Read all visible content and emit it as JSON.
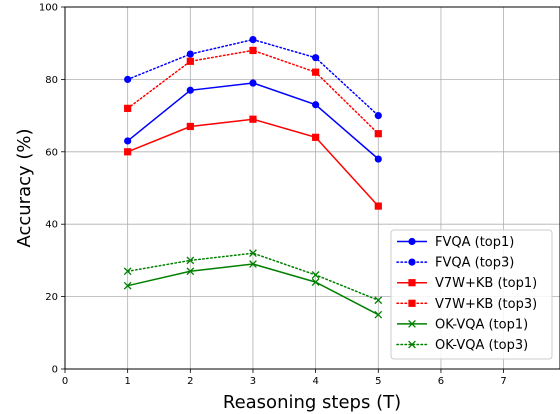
{
  "chart_data": {
    "type": "line",
    "title": "",
    "xlabel": "Reasoning steps (T)",
    "ylabel": "Accuracy (%)",
    "xlim": [
      0,
      7.9
    ],
    "ylim": [
      0,
      100
    ],
    "xticks": [
      0,
      1,
      2,
      3,
      4,
      5,
      6,
      7
    ],
    "yticks": [
      0,
      20,
      40,
      60,
      80,
      100
    ],
    "grid": true,
    "legend_position": "lower-right",
    "x": [
      1,
      2,
      3,
      4,
      5
    ],
    "series": [
      {
        "name": "FVQA (top1)",
        "values": [
          63,
          77,
          79,
          73,
          58
        ],
        "color": "#0000ff",
        "marker": "circle",
        "linestyle": "solid"
      },
      {
        "name": "FVQA (top3)",
        "values": [
          80,
          87,
          91,
          86,
          70
        ],
        "color": "#0000ff",
        "marker": "circle",
        "linestyle": "dotted"
      },
      {
        "name": "V7W+KB (top1)",
        "values": [
          60,
          67,
          69,
          64,
          45
        ],
        "color": "#ff0000",
        "marker": "square",
        "linestyle": "solid"
      },
      {
        "name": "V7W+KB (top3)",
        "values": [
          72,
          85,
          88,
          82,
          65
        ],
        "color": "#ff0000",
        "marker": "square",
        "linestyle": "dotted"
      },
      {
        "name": "OK-VQA (top1)",
        "values": [
          23,
          27,
          29,
          24,
          15
        ],
        "color": "#008000",
        "marker": "x",
        "linestyle": "solid"
      },
      {
        "name": "OK-VQA (top3)",
        "values": [
          27,
          30,
          32,
          26,
          19
        ],
        "color": "#008000",
        "marker": "x",
        "linestyle": "dotted"
      }
    ]
  }
}
